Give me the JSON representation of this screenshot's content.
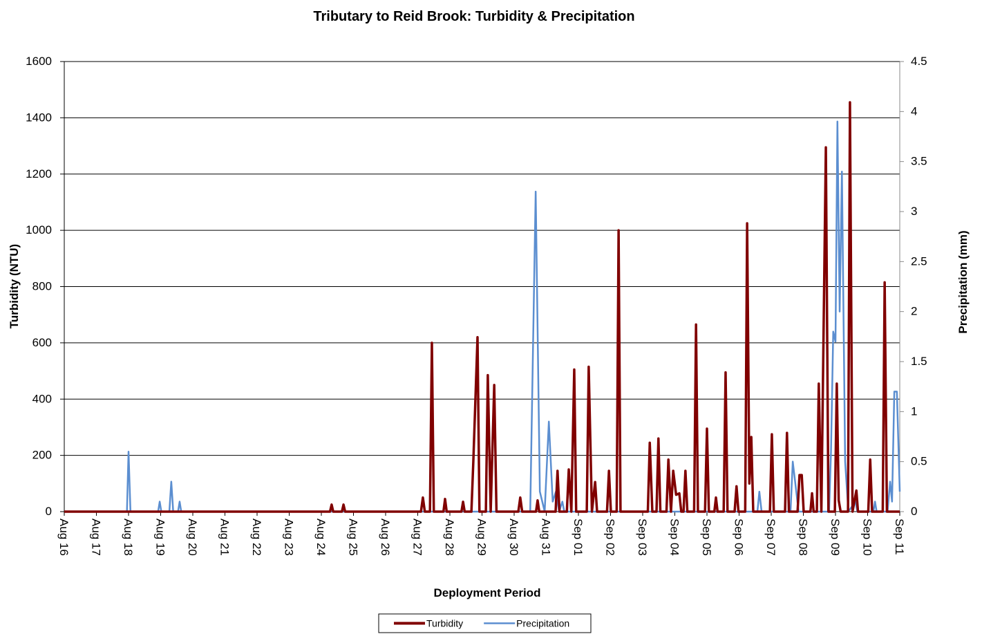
{
  "chart_data": {
    "type": "line",
    "title": "Tributary to Reid Brook: Turbidity & Precipitation",
    "x_label": "Deployment Period",
    "y_label": "Turbidity (NTU)",
    "y2_label": "Precipitation (mm)",
    "legend": "bottom",
    "grid": true,
    "xlim": [
      0,
      26
    ],
    "xticks": [
      {
        "value": 0,
        "label": "Aug 16"
      },
      {
        "value": 1,
        "label": "Aug 17"
      },
      {
        "value": 2,
        "label": "Aug 18"
      },
      {
        "value": 3,
        "label": "Aug 19"
      },
      {
        "value": 4,
        "label": "Aug 20"
      },
      {
        "value": 5,
        "label": "Aug 21"
      },
      {
        "value": 6,
        "label": "Aug 22"
      },
      {
        "value": 7,
        "label": "Aug 23"
      },
      {
        "value": 8,
        "label": "Aug 24"
      },
      {
        "value": 9,
        "label": "Aug 25"
      },
      {
        "value": 10,
        "label": "Aug 26"
      },
      {
        "value": 11,
        "label": "Aug 27"
      },
      {
        "value": 12,
        "label": "Aug 28"
      },
      {
        "value": 13,
        "label": "Aug 29"
      },
      {
        "value": 14,
        "label": "Aug 30"
      },
      {
        "value": 15,
        "label": "Aug 31"
      },
      {
        "value": 16,
        "label": "Sep 01"
      },
      {
        "value": 17,
        "label": "Sep 02"
      },
      {
        "value": 18,
        "label": "Sep 03"
      },
      {
        "value": 19,
        "label": "Sep 04"
      },
      {
        "value": 20,
        "label": "Sep 05"
      },
      {
        "value": 21,
        "label": "Sep 06"
      },
      {
        "value": 22,
        "label": "Sep 07"
      },
      {
        "value": 23,
        "label": "Sep 08"
      },
      {
        "value": 24,
        "label": "Sep 09"
      },
      {
        "value": 25,
        "label": "Sep 10"
      },
      {
        "value": 26,
        "label": "Sep 11"
      }
    ],
    "ylim": [
      0,
      1600
    ],
    "yticks": [
      0,
      200,
      400,
      600,
      800,
      1000,
      1200,
      1400,
      1600
    ],
    "y2lim": [
      0,
      4.5
    ],
    "y2ticks": [
      0,
      0.5,
      1,
      1.5,
      2,
      2.5,
      3,
      3.5,
      4,
      4.5
    ],
    "series": [
      {
        "name": "Turbidity",
        "color": "#800000",
        "x": [
          0,
          8.27,
          8.32,
          8.37,
          8.64,
          8.69,
          8.74,
          11.1,
          11.16,
          11.22,
          11.38,
          11.44,
          11.5,
          11.8,
          11.85,
          11.9,
          12.36,
          12.41,
          12.46,
          12.67,
          12.73,
          12.86,
          12.92,
          13.12,
          13.18,
          13.27,
          13.38,
          13.45,
          14.13,
          14.19,
          14.25,
          14.68,
          14.73,
          14.78,
          15.29,
          15.35,
          15.41,
          15.64,
          15.7,
          15.78,
          15.87,
          15.93,
          16.26,
          16.32,
          16.42,
          16.52,
          16.58,
          16.89,
          16.95,
          17.01,
          17.19,
          17.25,
          17.31,
          18.16,
          18.22,
          18.3,
          18.43,
          18.49,
          18.55,
          18.74,
          18.8,
          18.88,
          18.95,
          19.04,
          19.14,
          19.2,
          19.27,
          19.33,
          19.39,
          19.6,
          19.66,
          19.72,
          19.94,
          20,
          20.06,
          20.23,
          20.28,
          20.33,
          20.52,
          20.58,
          20.64,
          20.86,
          20.92,
          20.98,
          21.19,
          21.25,
          21.32,
          21.38,
          21.44,
          21.96,
          22.02,
          22.08,
          22.43,
          22.49,
          22.55,
          22.82,
          22.88,
          22.95,
          23.01,
          23.22,
          23.27,
          23.32,
          23.42,
          23.48,
          23.56,
          23.7,
          23.78,
          23.98,
          24.04,
          24.1,
          24.16,
          24.39,
          24.45,
          24.53,
          24.65,
          24.7,
          25.02,
          25.08,
          25.14,
          25.47,
          25.53,
          25.6,
          26
        ],
        "values": [
          0,
          0,
          25,
          0,
          0,
          25,
          0,
          0,
          50,
          0,
          0,
          600,
          0,
          0,
          45,
          0,
          0,
          35,
          0,
          0,
          180,
          620,
          0,
          0,
          485,
          0,
          450,
          0,
          0,
          50,
          0,
          0,
          40,
          0,
          0,
          145,
          0,
          0,
          150,
          0,
          505,
          0,
          0,
          515,
          0,
          105,
          0,
          0,
          145,
          0,
          0,
          1000,
          0,
          0,
          245,
          0,
          0,
          260,
          0,
          0,
          185,
          0,
          145,
          60,
          65,
          0,
          0,
          145,
          0,
          0,
          665,
          0,
          0,
          295,
          0,
          0,
          50,
          0,
          0,
          495,
          0,
          0,
          90,
          0,
          0,
          1025,
          100,
          265,
          0,
          0,
          275,
          0,
          0,
          280,
          0,
          0,
          130,
          130,
          0,
          0,
          65,
          0,
          0,
          455,
          0,
          1295,
          0,
          0,
          455,
          40,
          0,
          0,
          1455,
          0,
          75,
          0,
          0,
          185,
          0,
          0,
          815,
          0,
          0
        ]
      },
      {
        "name": "Precipitation",
        "color": "#5b8ed0",
        "axis": "y2",
        "x": [
          0,
          1.95,
          2,
          2.06,
          2.92,
          2.97,
          3.02,
          3.27,
          3.33,
          3.39,
          3.54,
          3.59,
          3.64,
          14.5,
          14.67,
          14.8,
          14.95,
          15.08,
          15.2,
          15.3,
          15.4,
          15.5,
          15.56,
          21.57,
          21.63,
          21.7,
          22.6,
          22.67,
          22.78,
          22.85,
          23.8,
          23.86,
          23.93,
          24,
          24.06,
          24.13,
          24.2,
          24.3,
          24.4,
          24.62,
          24.68,
          25.18,
          25.23,
          25.28,
          25.62,
          25.7,
          25.76,
          25.83,
          25.91,
          26
        ],
        "values": [
          0,
          0,
          0.6,
          0,
          0,
          0.1,
          0,
          0,
          0.3,
          0,
          0,
          0.1,
          0,
          0,
          3.2,
          0.2,
          0,
          0.9,
          0.1,
          0.2,
          0,
          0.1,
          0,
          0,
          0.2,
          0,
          0,
          0.5,
          0.2,
          0,
          0,
          0.6,
          1.8,
          1.7,
          3.9,
          2,
          3.4,
          0.5,
          0,
          0.1,
          0,
          0,
          0.1,
          0,
          0,
          0.3,
          0.1,
          1.2,
          1.2,
          0.2
        ]
      }
    ]
  }
}
